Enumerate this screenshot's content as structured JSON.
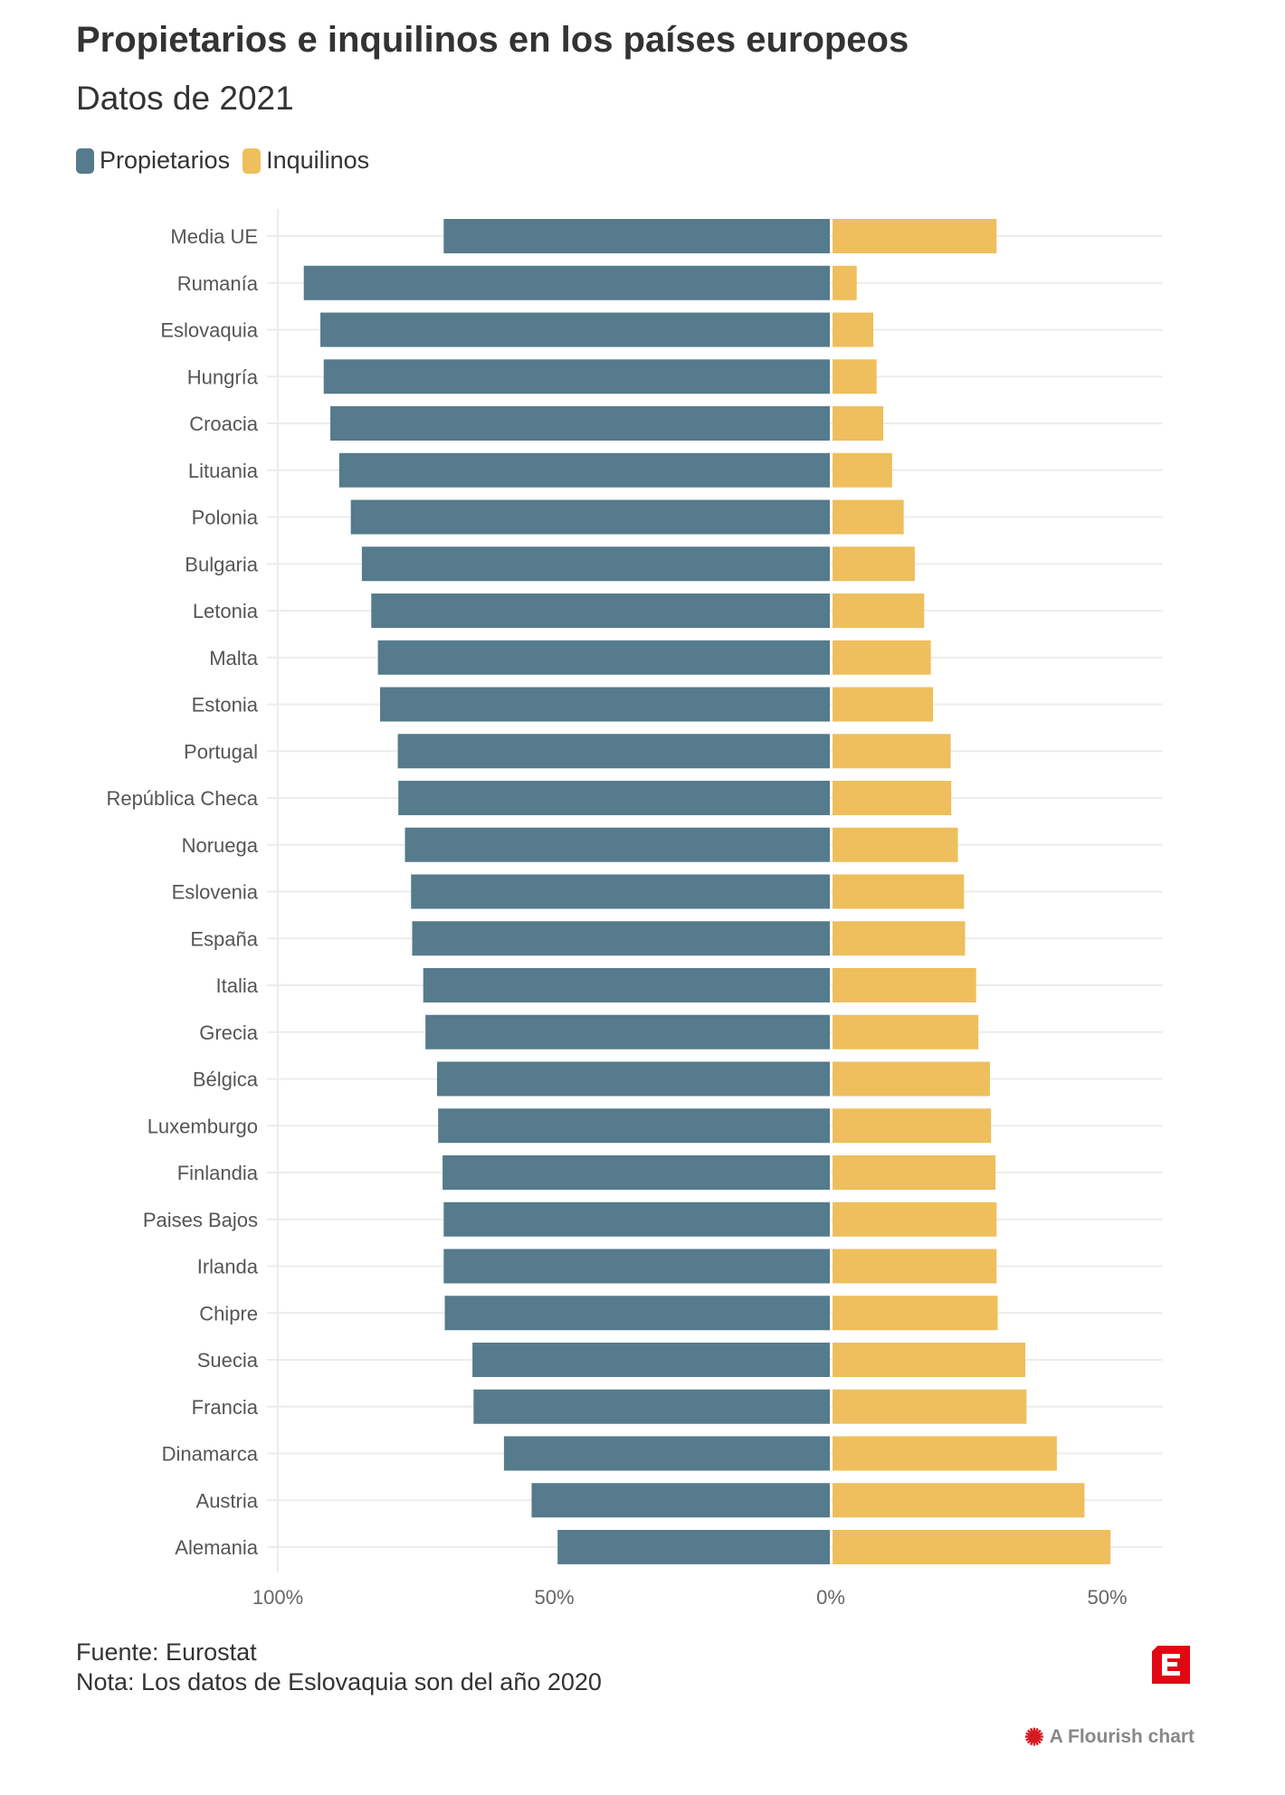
{
  "title": "Propietarios e inquilinos en los países europeos",
  "subtitle": "Datos de 2021",
  "footer": {
    "source": "Fuente: Eurostat",
    "note": "Nota: Los datos de Eslovaquia son del año 2020",
    "credit": "A Flourish chart",
    "logo_text": "E"
  },
  "chart_data": {
    "type": "bar",
    "orientation": "horizontal-diverging",
    "categories": [
      "Media UE",
      "Rumanía",
      "Eslovaquia",
      "Hungría",
      "Croacia",
      "Lituania",
      "Polonia",
      "Bulgaria",
      "Letonia",
      "Malta",
      "Estonia",
      "Portugal",
      "República Checa",
      "Noruega",
      "Eslovenia",
      "España",
      "Italia",
      "Grecia",
      "Bélgica",
      "Luxemburgo",
      "Finlandia",
      "Paises Bajos",
      "Irlanda",
      "Chipre",
      "Suecia",
      "Francia",
      "Dinamarca",
      "Austria",
      "Alemania"
    ],
    "series": [
      {
        "name": "Propietarios",
        "color": "#557b8c",
        "values": [
          70.0,
          95.3,
          92.3,
          91.7,
          90.5,
          88.9,
          86.8,
          84.8,
          83.1,
          81.9,
          81.5,
          78.3,
          78.2,
          77.0,
          75.9,
          75.7,
          73.7,
          73.3,
          71.2,
          71.0,
          70.2,
          70.0,
          70.0,
          69.8,
          64.8,
          64.6,
          59.1,
          54.1,
          49.4
        ]
      },
      {
        "name": "Inquilinos",
        "color": "#eebf5c",
        "values": [
          30.0,
          4.7,
          7.7,
          8.3,
          9.5,
          11.1,
          13.2,
          15.2,
          16.9,
          18.1,
          18.5,
          21.7,
          21.8,
          23.0,
          24.1,
          24.3,
          26.3,
          26.7,
          28.8,
          29.0,
          29.8,
          30.0,
          30.0,
          30.2,
          35.2,
          35.4,
          40.9,
          45.9,
          50.6
        ]
      }
    ],
    "x_ticks": [
      "100%",
      "50%",
      "0%",
      "50%"
    ],
    "xlim": [
      -100,
      60
    ],
    "grid": true,
    "legend": "top-left"
  }
}
